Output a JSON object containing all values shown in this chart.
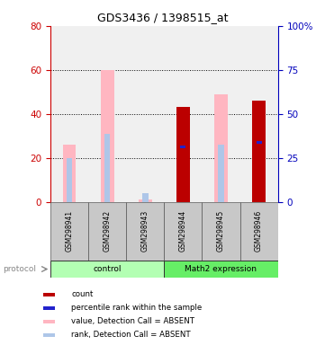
{
  "title": "GDS3436 / 1398515_at",
  "samples": [
    "GSM298941",
    "GSM298942",
    "GSM298943",
    "GSM298944",
    "GSM298945",
    "GSM298946"
  ],
  "groups": [
    {
      "name": "control",
      "color_light": "#b3ffb3",
      "color_dark": "#33cc33",
      "start": 0,
      "end": 2
    },
    {
      "name": "Math2 expression",
      "color_light": "#66ff66",
      "color_dark": "#00cc00",
      "start": 3,
      "end": 5
    }
  ],
  "left_ylim": [
    0,
    80
  ],
  "right_ylim": [
    0,
    100
  ],
  "left_yticks": [
    0,
    20,
    40,
    60,
    80
  ],
  "right_yticks": [
    0,
    25,
    50,
    75,
    100
  ],
  "right_yticklabels": [
    "0",
    "25",
    "50",
    "75",
    "100%"
  ],
  "bars": {
    "GSM298941": {
      "pink_value": 26,
      "blue_rank": 20,
      "red_count": null,
      "blue_sq": null
    },
    "GSM298942": {
      "pink_value": 60,
      "blue_rank": 31,
      "red_count": null,
      "blue_sq": null
    },
    "GSM298943": {
      "pink_value": 1,
      "blue_rank": 4,
      "red_count": null,
      "blue_sq": null
    },
    "GSM298944": {
      "pink_value": null,
      "blue_rank": null,
      "red_count": 43,
      "blue_sq": 25
    },
    "GSM298945": {
      "pink_value": 49,
      "blue_rank": 26,
      "red_count": null,
      "blue_sq": null
    },
    "GSM298946": {
      "pink_value": null,
      "blue_rank": null,
      "red_count": 46,
      "blue_sq": 27
    }
  },
  "bar_width": 0.35,
  "pink_color": "#ffb6c1",
  "light_blue_color": "#aec6e8",
  "red_color": "#bb0000",
  "blue_color": "#2222cc",
  "sample_box_color": "#c8c8c8",
  "left_axis_color": "#cc0000",
  "right_axis_color": "#0000bb",
  "legend_items": [
    {
      "color": "#bb0000",
      "label": "count"
    },
    {
      "color": "#2222cc",
      "label": "percentile rank within the sample"
    },
    {
      "color": "#ffb6c1",
      "label": "value, Detection Call = ABSENT"
    },
    {
      "color": "#aec6e8",
      "label": "rank, Detection Call = ABSENT"
    }
  ]
}
